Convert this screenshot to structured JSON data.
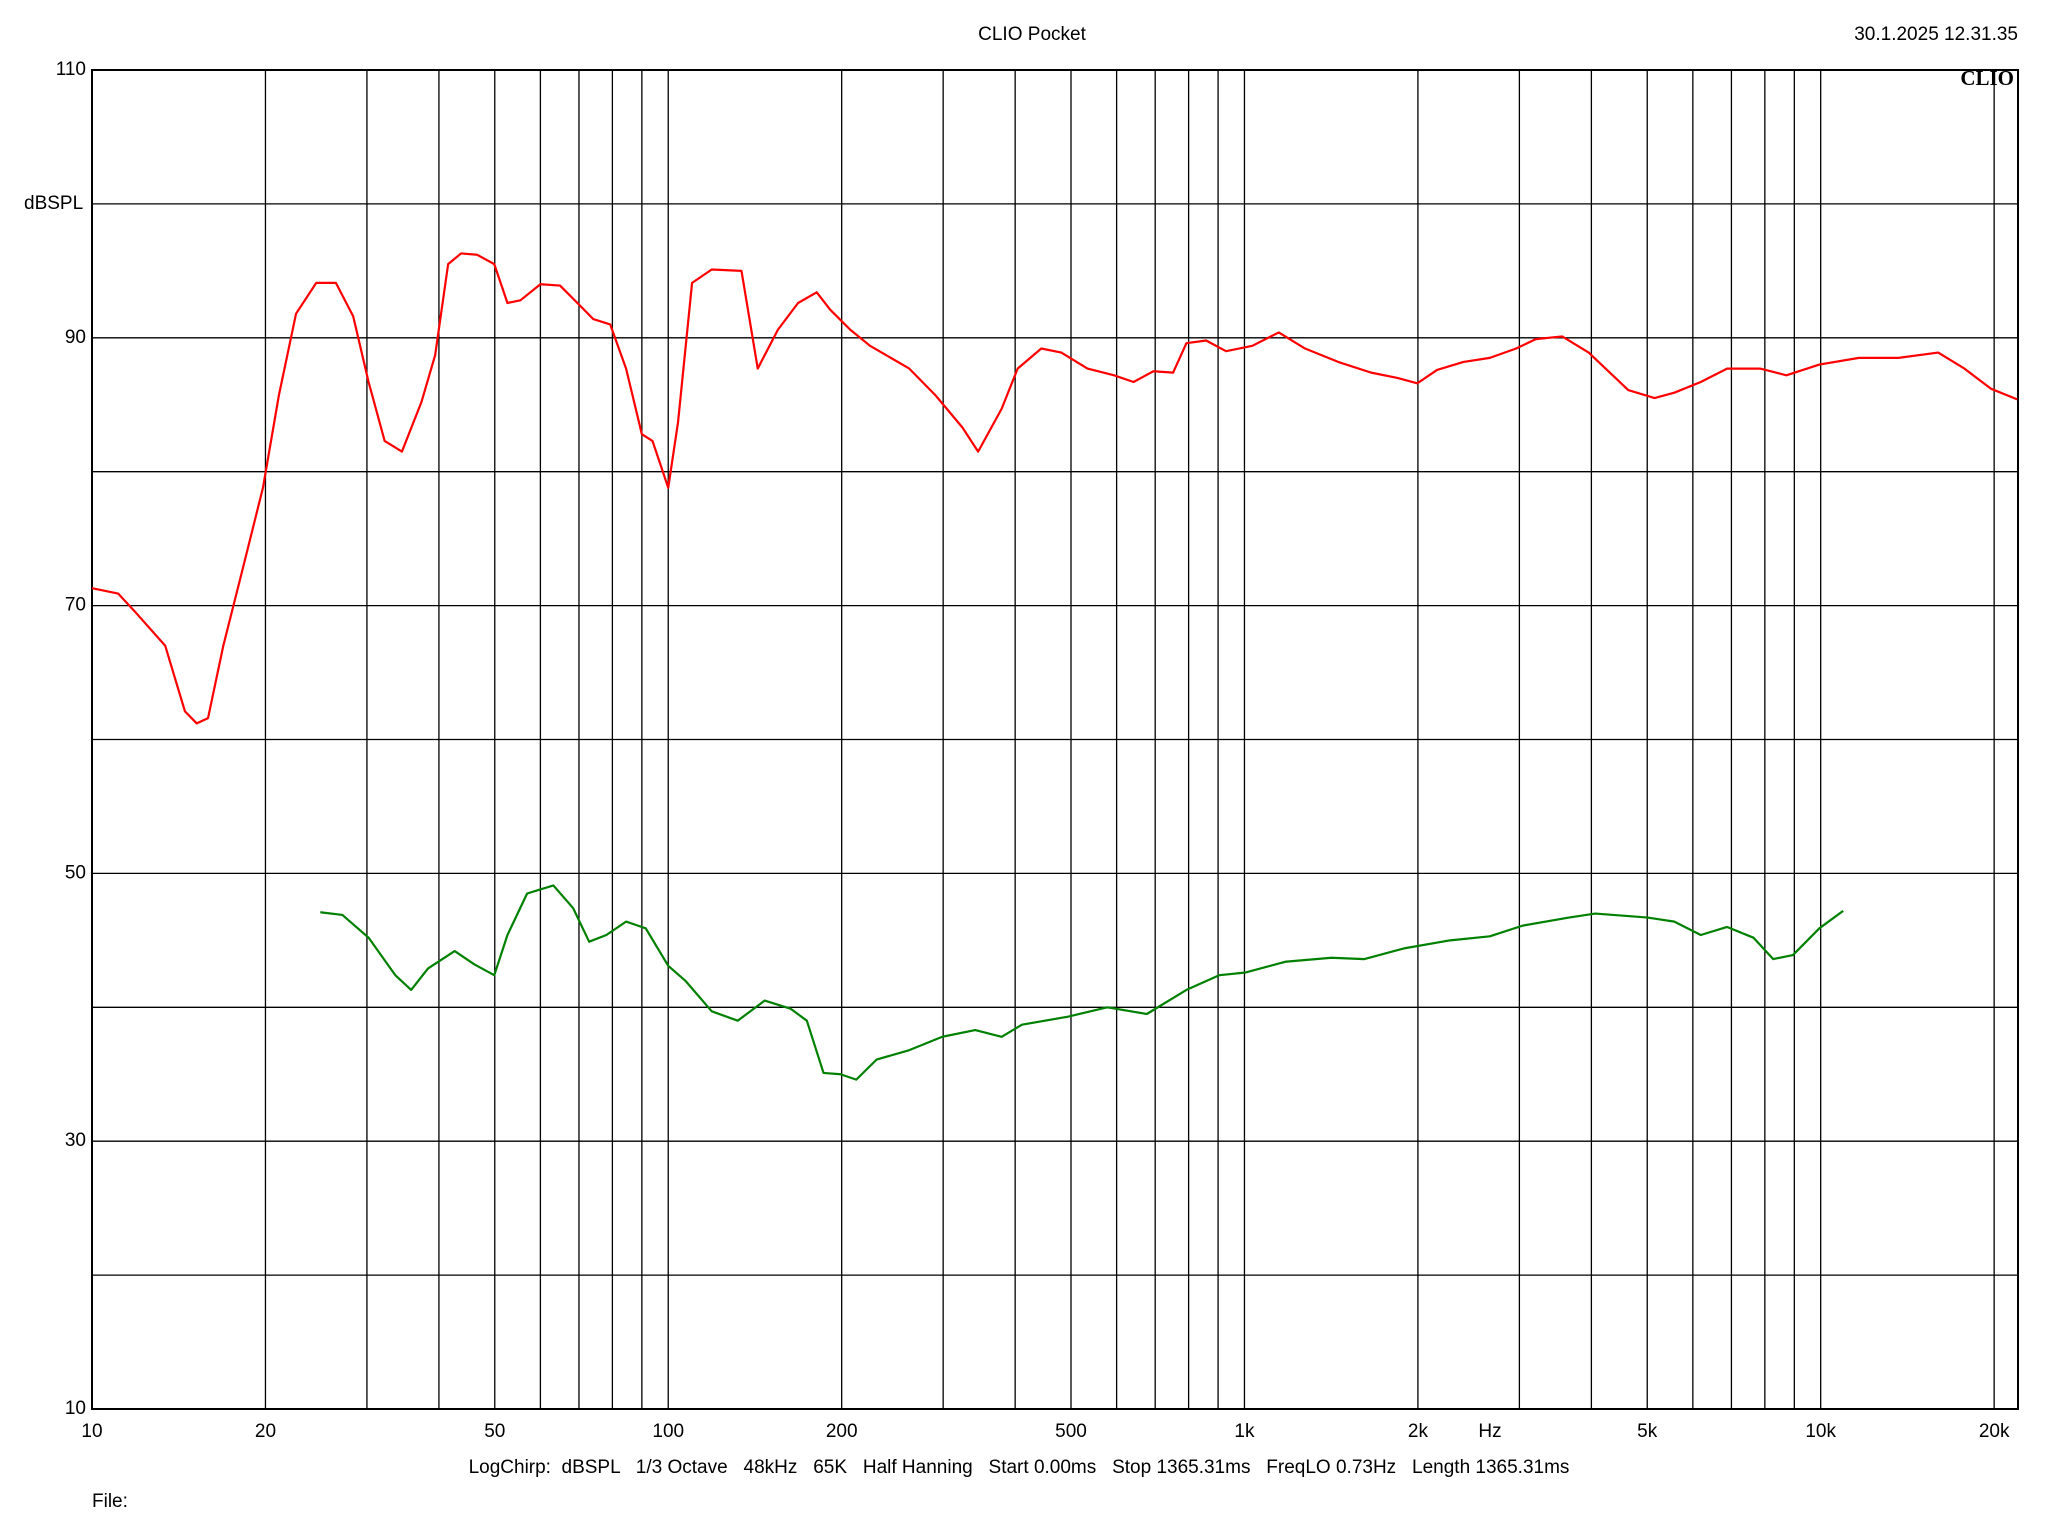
{
  "chart_data": {
    "type": "line",
    "title": "CLIO Pocket",
    "timestamp": "30.1.2025 12.31.35",
    "logo": "CLIO",
    "y_label": "dBSPL",
    "x_label": "Hz",
    "footer": "LogChirp:  dBSPL   1/3 Octave   48kHz   65K   Half Hanning   Start 0.00ms   Stop 1365.31ms   FreqLO 0.73Hz   Length 1365.31ms",
    "file_label": "File:",
    "x_log": true,
    "grid": true,
    "xlim": [
      10,
      22000
    ],
    "ylim": [
      10,
      110
    ],
    "xticks": [
      10,
      20,
      50,
      100,
      200,
      500,
      {
        "value": 1000,
        "label": "1k"
      },
      {
        "value": 2000,
        "label": "2k"
      },
      {
        "value": 5000,
        "label": "5k"
      },
      {
        "value": 10000,
        "label": "10k"
      },
      {
        "value": 20000,
        "label": "20k"
      }
    ],
    "xminor": [
      30,
      40,
      60,
      70,
      80,
      90,
      300,
      400,
      600,
      700,
      800,
      900,
      3000,
      4000,
      6000,
      7000,
      8000,
      9000
    ],
    "yticks": [
      10,
      30,
      50,
      70,
      90,
      110
    ],
    "yminor": [
      20,
      40,
      60,
      80,
      100
    ],
    "series": [
      {
        "color": "#ff0000",
        "x": [
          10,
          11.1,
          11.9,
          13.4,
          14.5,
          15.2,
          15.9,
          16.9,
          18.3,
          19.8,
          21.1,
          22.6,
          24.5,
          26.5,
          28.4,
          30.2,
          32.2,
          34.5,
          37.3,
          39.4,
          41.5,
          43.7,
          46.6,
          49.9,
          52.6,
          55.4,
          60,
          64.9,
          70.3,
          74.1,
          79.3,
          84.5,
          90,
          93.9,
          100,
          104,
          110,
          119,
          134,
          143,
          147,
          155,
          168,
          181,
          191,
          207,
          224,
          262,
          291,
          324,
          345,
          379,
          404,
          444,
          481,
          534,
          594,
          642,
          695,
          752,
          793,
          858,
          929,
          1032,
          1147,
          1274,
          1454,
          1659,
          1843,
          1995,
          2159,
          2399,
          2666,
          2961,
          3204,
          3560,
          3957,
          4634,
          5149,
          5572,
          6193,
          6880,
          7850,
          8720,
          9947,
          11650,
          13650,
          15990,
          17760,
          19740,
          21930
        ],
        "values": [
          71.3,
          70.9,
          69.5,
          67.0,
          62.1,
          61.2,
          61.6,
          67.0,
          72.9,
          78.8,
          85.7,
          91.8,
          94.1,
          94.1,
          91.6,
          86.7,
          82.3,
          81.5,
          85.2,
          88.7,
          95.5,
          96.3,
          96.2,
          95.5,
          92.6,
          92.8,
          94.0,
          93.9,
          92.4,
          91.4,
          91.0,
          87.7,
          82.8,
          82.3,
          78.8,
          83.7,
          94.1,
          95.1,
          95.0,
          87.7,
          88.7,
          90.6,
          92.6,
          93.4,
          92.1,
          90.6,
          89.4,
          87.7,
          85.7,
          83.3,
          81.5,
          84.7,
          87.7,
          89.2,
          88.9,
          87.7,
          87.2,
          86.7,
          87.5,
          87.4,
          89.6,
          89.8,
          89.0,
          89.4,
          90.4,
          89.2,
          88.2,
          87.4,
          87.0,
          86.6,
          87.6,
          88.2,
          88.5,
          89.2,
          89.9,
          90.1,
          88.9,
          86.1,
          85.5,
          85.9,
          86.7,
          87.7,
          87.7,
          87.2,
          88.0,
          88.5,
          88.5,
          88.9,
          87.7,
          86.2,
          85.4
        ]
      },
      {
        "color": "#008000",
        "x": [
          24.9,
          27.2,
          30.2,
          33.6,
          35.8,
          38.3,
          42.6,
          46.1,
          49.9,
          52.6,
          56.9,
          63.2,
          68.4,
          72.9,
          78.1,
          84.5,
          91.4,
          100,
          107,
          119,
          132,
          147,
          163,
          174,
          186,
          199,
          212,
          230,
          262,
          299,
          341,
          379,
          411,
          494,
          578,
          677,
          793,
          905,
          1005,
          1177,
          1416,
          1615,
          1892,
          2275,
          2666,
          3040,
          3656,
          4062,
          5014,
          5572,
          6193,
          6880,
          7643,
          8272,
          8951,
          9947,
          10940
        ],
        "values": [
          47.1,
          46.9,
          45.2,
          42.4,
          41.3,
          42.9,
          44.2,
          43.2,
          42.4,
          45.4,
          48.5,
          49.1,
          47.4,
          44.9,
          45.4,
          46.4,
          45.9,
          43.1,
          42.0,
          39.7,
          39.0,
          40.5,
          39.9,
          39.0,
          35.1,
          35.0,
          34.6,
          36.1,
          36.8,
          37.8,
          38.3,
          37.8,
          38.7,
          39.3,
          40.0,
          39.5,
          41.3,
          42.4,
          42.6,
          43.4,
          43.7,
          43.6,
          44.4,
          45.0,
          45.3,
          46.1,
          46.7,
          47.0,
          46.7,
          46.4,
          45.4,
          46.0,
          45.2,
          43.6,
          43.9,
          45.9,
          47.2
        ]
      }
    ]
  }
}
